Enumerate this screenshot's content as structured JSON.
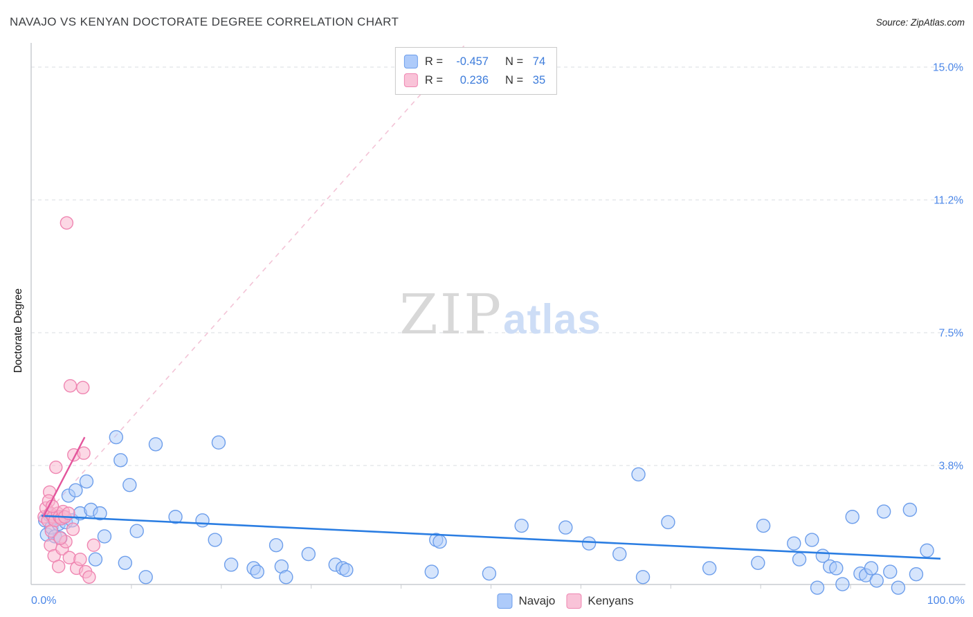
{
  "header": {
    "title": "NAVAJO VS KENYAN DOCTORATE DEGREE CORRELATION CHART",
    "source": "Source: ZipAtlas.com"
  },
  "watermark": {
    "zip": "ZIP",
    "atlas": "atlas"
  },
  "legend_box": {
    "rows": [
      {
        "r_label": "R =",
        "r_value": "-0.457",
        "n_label": "N =",
        "n_value": "74"
      },
      {
        "r_label": "R =",
        "r_value": "0.236",
        "n_label": "N =",
        "n_value": "35"
      }
    ]
  },
  "bottom_legend": {
    "navajo": "Navajo",
    "kenyans": "Kenyans"
  },
  "axes": {
    "x_min": "0.0%",
    "x_max": "100.0%"
  },
  "chart_data": {
    "type": "scatter",
    "title": "NAVAJO VS KENYAN DOCTORATE DEGREE CORRELATION CHART",
    "xlabel": "",
    "ylabel": "Doctorate Degree",
    "xlim": [
      0,
      103
    ],
    "ylim": [
      0,
      15.7
    ],
    "grid": "horizontal-dashed",
    "legend_position": "bottom-center",
    "x_tick_labels": [
      "0.0%",
      "100.0%"
    ],
    "x_ticks": [
      10,
      20,
      30,
      40,
      50,
      60,
      70,
      80,
      90
    ],
    "y_ticks": [
      {
        "value": 15.0,
        "label": "15.0%"
      },
      {
        "value": 11.25,
        "label": "11.2%"
      },
      {
        "value": 7.5,
        "label": "7.5%"
      },
      {
        "value": 3.75,
        "label": "3.8%"
      }
    ],
    "series": [
      {
        "name": "Navajo",
        "R": -0.457,
        "N": 74,
        "fill": "#aecbfa",
        "stroke": "#6d9eeb",
        "points": [
          [
            0.4,
            2.2
          ],
          [
            0.6,
            1.8
          ],
          [
            0.9,
            2.35
          ],
          [
            1.1,
            2.0
          ],
          [
            1.3,
            2.25
          ],
          [
            1.5,
            1.75
          ],
          [
            1.7,
            2.3
          ],
          [
            1.9,
            2.1
          ],
          [
            2.1,
            1.7
          ],
          [
            2.4,
            2.3
          ],
          [
            2.7,
            2.15
          ],
          [
            3.0,
            2.9
          ],
          [
            3.4,
            2.2
          ],
          [
            3.8,
            3.05
          ],
          [
            4.3,
            2.4
          ],
          [
            5.0,
            3.3
          ],
          [
            5.5,
            2.5
          ],
          [
            6.0,
            1.1
          ],
          [
            6.5,
            2.4
          ],
          [
            7.0,
            1.75
          ],
          [
            8.3,
            4.55
          ],
          [
            8.8,
            3.9
          ],
          [
            9.3,
            1.0
          ],
          [
            9.8,
            3.2
          ],
          [
            10.6,
            1.9
          ],
          [
            11.6,
            0.6
          ],
          [
            12.7,
            4.35
          ],
          [
            14.9,
            2.3
          ],
          [
            17.9,
            2.2
          ],
          [
            19.3,
            1.65
          ],
          [
            19.7,
            4.4
          ],
          [
            21.1,
            0.95
          ],
          [
            23.6,
            0.85
          ],
          [
            24.0,
            0.75
          ],
          [
            26.1,
            1.5
          ],
          [
            26.7,
            0.9
          ],
          [
            27.2,
            0.6
          ],
          [
            29.7,
            1.25
          ],
          [
            32.7,
            0.95
          ],
          [
            33.5,
            0.85
          ],
          [
            33.9,
            0.8
          ],
          [
            43.4,
            0.75
          ],
          [
            43.9,
            1.65
          ],
          [
            44.3,
            1.6
          ],
          [
            49.8,
            0.7
          ],
          [
            53.4,
            2.05
          ],
          [
            58.3,
            2.0
          ],
          [
            60.9,
            1.55
          ],
          [
            64.3,
            1.25
          ],
          [
            66.4,
            3.5
          ],
          [
            66.9,
            0.6
          ],
          [
            69.7,
            2.15
          ],
          [
            74.3,
            0.85
          ],
          [
            79.7,
            1.0
          ],
          [
            80.3,
            2.05
          ],
          [
            83.7,
            1.55
          ],
          [
            84.3,
            1.1
          ],
          [
            85.7,
            1.65
          ],
          [
            86.3,
            0.3
          ],
          [
            86.9,
            1.2
          ],
          [
            87.7,
            0.9
          ],
          [
            88.4,
            0.85
          ],
          [
            89.1,
            0.4
          ],
          [
            90.2,
            2.3
          ],
          [
            91.1,
            0.7
          ],
          [
            91.7,
            0.65
          ],
          [
            92.3,
            0.85
          ],
          [
            92.9,
            0.5
          ],
          [
            93.7,
            2.45
          ],
          [
            94.4,
            0.75
          ],
          [
            95.3,
            0.3
          ],
          [
            96.6,
            2.5
          ],
          [
            97.3,
            0.68
          ],
          [
            98.5,
            1.35
          ]
        ]
      },
      {
        "name": "Kenyans",
        "R": 0.236,
        "N": 35,
        "fill": "#f9c3d8",
        "stroke": "#ef85b1",
        "points": [
          [
            0.3,
            2.3
          ],
          [
            0.5,
            2.55
          ],
          [
            0.7,
            2.2
          ],
          [
            0.9,
            3.0
          ],
          [
            1.0,
            2.4
          ],
          [
            1.1,
            1.9
          ],
          [
            1.3,
            2.3
          ],
          [
            1.5,
            2.2
          ],
          [
            1.6,
            3.7
          ],
          [
            1.8,
            2.4
          ],
          [
            2.0,
            2.3
          ],
          [
            2.2,
            2.25
          ],
          [
            2.4,
            2.45
          ],
          [
            2.6,
            2.3
          ],
          [
            2.8,
            10.6
          ],
          [
            3.0,
            2.4
          ],
          [
            3.2,
            6.0
          ],
          [
            4.6,
            5.95
          ],
          [
            3.6,
            4.05
          ],
          [
            4.7,
            4.1
          ],
          [
            1.0,
            1.5
          ],
          [
            1.4,
            1.2
          ],
          [
            1.9,
            0.9
          ],
          [
            2.3,
            1.4
          ],
          [
            2.7,
            1.6
          ],
          [
            3.1,
            1.15
          ],
          [
            3.5,
            1.95
          ],
          [
            3.9,
            0.85
          ],
          [
            4.3,
            1.1
          ],
          [
            4.9,
            0.75
          ],
          [
            5.3,
            0.6
          ],
          [
            5.8,
            1.5
          ],
          [
            0.8,
            2.75
          ],
          [
            2.1,
            1.7
          ],
          [
            1.2,
            2.6
          ]
        ]
      }
    ],
    "trends": {
      "navajo": {
        "x1": 0,
        "y1": 2.33,
        "x2": 100,
        "y2": 1.12
      },
      "kenyans_solid": {
        "x1": 0.2,
        "y1": 2.3,
        "x2": 4.8,
        "y2": 4.55
      },
      "kenyans_dashed": {
        "x1": 0.2,
        "y1": 2.3,
        "x2": 47.0,
        "y2": 15.6
      }
    },
    "colors": {
      "navajo_trend": "#2a7de2",
      "kenyan_trend": "#e3559c",
      "tick_label": "#4a86e8",
      "grid": "#dadde1"
    }
  }
}
